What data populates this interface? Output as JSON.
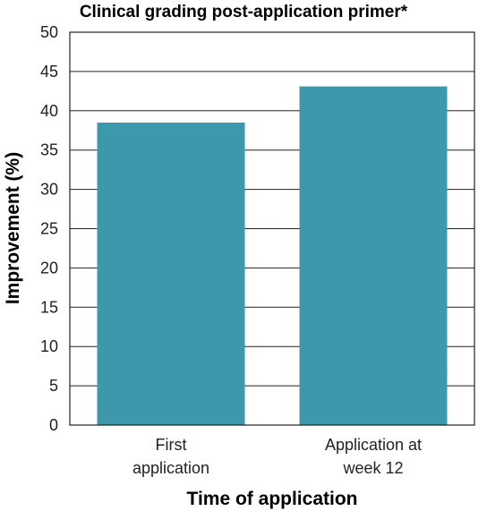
{
  "chart_data": {
    "type": "bar",
    "title": "Clinical grading post-application primer*",
    "xlabel": "Time of application",
    "ylabel": "Improvement  (%)",
    "categories": [
      [
        "First",
        "application"
      ],
      [
        "Application at",
        "week 12"
      ]
    ],
    "values": [
      38.5,
      43.1
    ],
    "ylim": [
      0,
      50
    ],
    "yticks": [
      "0",
      "5",
      "10",
      "15",
      "20",
      "25",
      "30",
      "35",
      "40",
      "45",
      "50"
    ],
    "grid": true,
    "bar_color": "#3e98ac"
  }
}
